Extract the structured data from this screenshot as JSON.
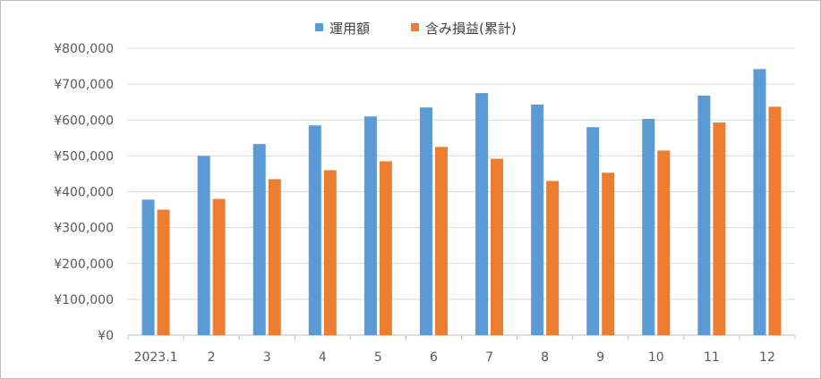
{
  "chart_data": {
    "type": "bar",
    "categories": [
      "2023.1",
      "2",
      "3",
      "4",
      "5",
      "6",
      "7",
      "8",
      "9",
      "10",
      "11",
      "12"
    ],
    "series": [
      {
        "name": "運用額",
        "color": "#5b9bd5",
        "values": [
          378000,
          500000,
          533000,
          585000,
          610000,
          635000,
          675000,
          643000,
          580000,
          603000,
          668000,
          742000
        ]
      },
      {
        "name": "含み損益(累計)",
        "color": "#ed7d31",
        "values": [
          350000,
          380000,
          435000,
          460000,
          485000,
          525000,
          492000,
          430000,
          453000,
          515000,
          593000,
          637000
        ]
      }
    ],
    "ylim": [
      0,
      800000
    ],
    "yticks": [
      "¥0",
      "¥100,000",
      "¥200,000",
      "¥300,000",
      "¥400,000",
      "¥500,000",
      "¥600,000",
      "¥700,000",
      "¥800,000"
    ],
    "ytick_values": [
      0,
      100000,
      200000,
      300000,
      400000,
      500000,
      600000,
      700000,
      800000
    ],
    "grid": true,
    "legend": "top-center",
    "gridline_color": "#d9d9d9",
    "axis_color": "#bfbfbf"
  }
}
